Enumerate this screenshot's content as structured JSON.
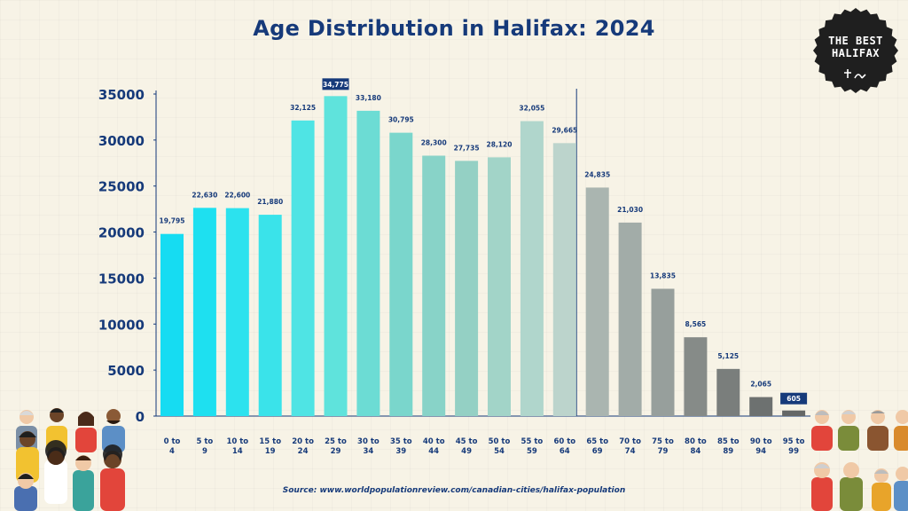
{
  "chart_data": {
    "type": "bar",
    "title": "Age Distribution in Halifax: 2024",
    "categories": [
      [
        "0 to",
        "4"
      ],
      [
        "5 to",
        "9"
      ],
      [
        "10 to",
        "14"
      ],
      [
        "15 to",
        "19"
      ],
      [
        "20 to",
        "24"
      ],
      [
        "25 to",
        "29"
      ],
      [
        "30 to",
        "34"
      ],
      [
        "35 to",
        "39"
      ],
      [
        "40 to",
        "44"
      ],
      [
        "45 to",
        "49"
      ],
      [
        "50 to",
        "54"
      ],
      [
        "55 to",
        "59"
      ],
      [
        "60 to",
        "64"
      ],
      [
        "65 to",
        "69"
      ],
      [
        "70 to",
        "74"
      ],
      [
        "75 to",
        "79"
      ],
      [
        "80 to",
        "84"
      ],
      [
        "85 to",
        "89"
      ],
      [
        "90 to",
        "94"
      ],
      [
        "95 to",
        "99"
      ]
    ],
    "values": [
      19795,
      22630,
      22600,
      21880,
      32125,
      34775,
      33180,
      30795,
      28300,
      27735,
      28120,
      32055,
      29665,
      24835,
      21030,
      13835,
      8565,
      5125,
      2065,
      605
    ],
    "value_labels": [
      "19,795",
      "22,630",
      "22,600",
      "21,880",
      "32,125",
      "34,775",
      "33,180",
      "30,795",
      "28,300",
      "27,735",
      "28,120",
      "32,055",
      "29,665",
      "24,835",
      "21,030",
      "13,835",
      "8,565",
      "5,125",
      "2,065",
      "605"
    ],
    "highlighted_labels": [
      "34,775",
      "605"
    ],
    "colors": [
      "#16dcf2",
      "#1ee0f0",
      "#2ce2ee",
      "#3ae3ea",
      "#4fe4e4",
      "#5fe3dc",
      "#6cdcd4",
      "#7ad6cc",
      "#88d3c8",
      "#94d0c4",
      "#a2d4c8",
      "#b0d6cc",
      "#bcd4cc",
      "#aab5b0",
      "#a2aca8",
      "#979f9c",
      "#868b88",
      "#7a7e7c",
      "#6d7170",
      "#646766"
    ],
    "yticks": [
      0,
      5000,
      10000,
      15000,
      20000,
      25000,
      30000,
      35000
    ],
    "ylim": [
      0,
      35000
    ],
    "xlabel": "",
    "ylabel": "",
    "grid": false,
    "accent_color": "#163a7a",
    "source": "Source: www.worldpopulationreview.com/canadian-cities/halifax-population"
  },
  "logo": {
    "line1": "THE BEST",
    "line2": "HALIFAX"
  }
}
